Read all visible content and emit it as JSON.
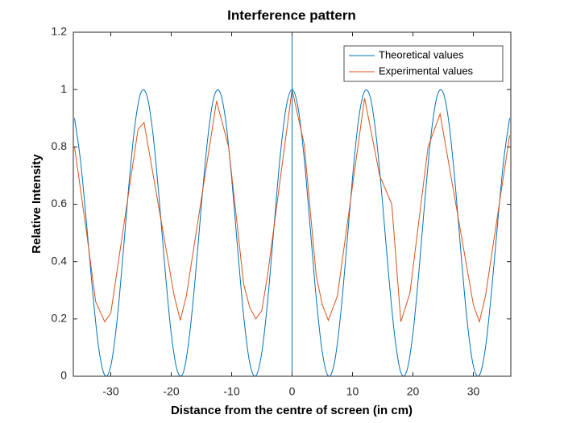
{
  "chart_data": {
    "type": "line",
    "title": "Interference pattern",
    "xlabel": "Distance from the centre of screen (in cm)",
    "ylabel": "Relative Intensity",
    "xlim": [
      -36.2,
      36.2
    ],
    "xticks": [
      -30,
      -20,
      -10,
      0,
      10,
      20,
      30
    ],
    "ylim": [
      0,
      1.2
    ],
    "yticks": [
      0,
      0.2,
      0.4,
      0.6,
      0.8,
      1,
      1.2
    ],
    "grid": false,
    "legend": "upper right",
    "xline": {
      "value": 0,
      "color": "#0072BD"
    },
    "series": [
      {
        "name": "Theoretical values",
        "color": "#0072BD",
        "smooth": true,
        "x": [
          -36,
          -35,
          -34,
          -33,
          -32,
          -31,
          -30,
          -29,
          -28,
          -27,
          -26,
          -25,
          -24,
          -23,
          -22,
          -21,
          -20,
          -19,
          -18,
          -17,
          -16,
          -15,
          -14,
          -13,
          -12,
          -11,
          -10,
          -9,
          -8,
          -7,
          -6,
          -5,
          -4,
          -3,
          -2,
          -1,
          0,
          1,
          2,
          3,
          4,
          5,
          6,
          7,
          8,
          9,
          10,
          11,
          12,
          13,
          14,
          15,
          16,
          17,
          18,
          19,
          20,
          21,
          22,
          23,
          24,
          25,
          26,
          27,
          28,
          29,
          30,
          31,
          32,
          33,
          34,
          35,
          36
        ],
        "values": [
          0.9,
          0.75,
          0.53,
          0.294,
          0.099,
          0.004,
          0.036,
          0.187,
          0.417,
          0.669,
          0.877,
          0.99,
          0.977,
          0.842,
          0.62,
          0.368,
          0.149,
          0.02,
          0.013,
          0.138,
          0.349,
          0.598,
          0.822,
          0.968,
          0.994,
          0.895,
          0.692,
          0.443,
          0.208,
          0.046,
          0.001,
          0.084,
          0.272,
          0.519,
          0.761,
          0.936,
          1,
          0.936,
          0.761,
          0.519,
          0.272,
          0.084,
          0.001,
          0.046,
          0.208,
          0.443,
          0.692,
          0.895,
          0.994,
          0.968,
          0.822,
          0.598,
          0.349,
          0.138,
          0.013,
          0.02,
          0.149,
          0.368,
          0.62,
          0.842,
          0.977,
          0.99,
          0.877,
          0.669,
          0.417,
          0.187,
          0.036,
          0.004,
          0.099,
          0.294,
          0.53,
          0.75,
          0.9
        ]
      },
      {
        "name": "Experimental values",
        "color": "#D95319",
        "smooth": false,
        "x": [
          -36,
          -34,
          -32.5,
          -31,
          -30,
          -25.5,
          -24.5,
          -19.5,
          -18.5,
          -17.5,
          -12.5,
          -10.5,
          -8,
          -7,
          -6,
          -5,
          -4,
          0,
          2,
          4,
          5,
          6,
          7.5,
          12,
          14.5,
          16.5,
          18,
          19.5,
          22.5,
          24.5,
          30,
          31,
          32,
          36
        ],
        "values": [
          0.8,
          0.5,
          0.26,
          0.19,
          0.22,
          0.86,
          0.885,
          0.28,
          0.195,
          0.28,
          0.96,
          0.8,
          0.32,
          0.24,
          0.2,
          0.23,
          0.36,
          1.0,
          0.81,
          0.35,
          0.25,
          0.195,
          0.28,
          0.97,
          0.7,
          0.6,
          0.19,
          0.29,
          0.8,
          0.915,
          0.25,
          0.19,
          0.28,
          0.84
        ]
      }
    ]
  }
}
